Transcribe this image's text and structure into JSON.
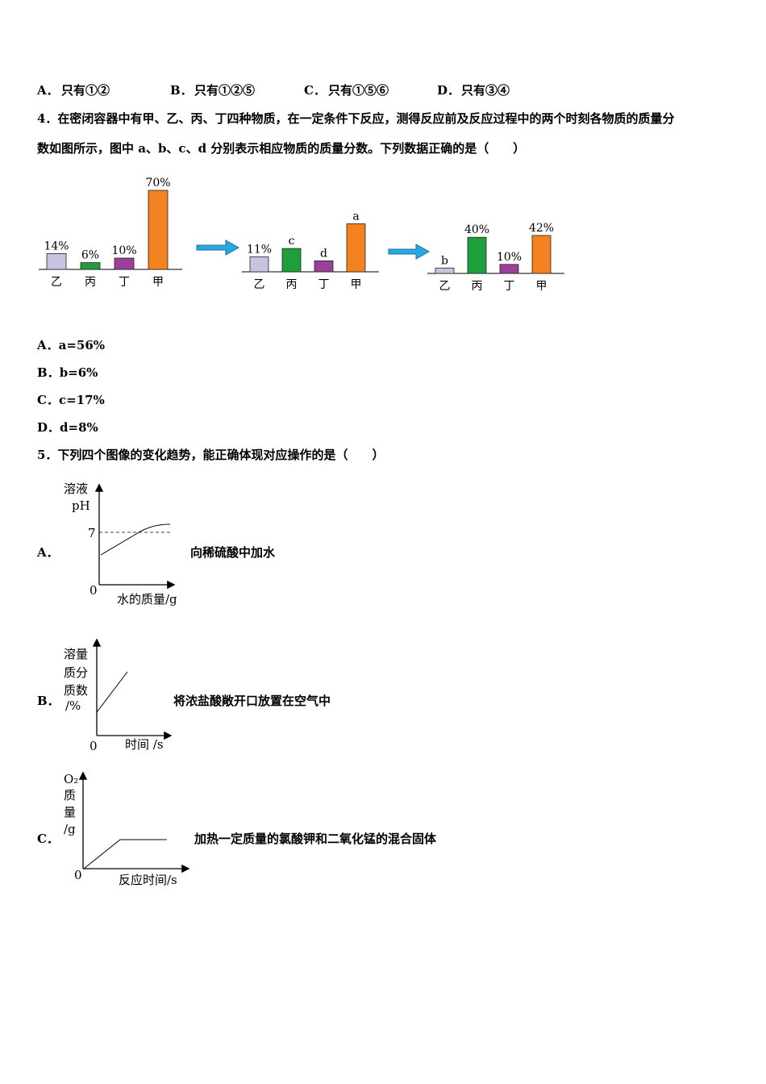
{
  "q3_options": [
    {
      "letter": "A．",
      "text": "只有①②"
    },
    {
      "letter": "B．",
      "text": "只有①②⑤"
    },
    {
      "letter": "C．",
      "text": "只有①⑤⑥"
    },
    {
      "letter": "D．",
      "text": "只有③④"
    }
  ],
  "q4": {
    "line1": "4．在密闭容器中有甲、乙、丙、丁四种物质，在一定条件下反应，测得反应前及反应过程中的两个时刻各物质的质量分",
    "line2": "数如图所示，图中 a、b、c、d 分别表示相应物质的质量分数。下列数据正确的是（　　）",
    "options": [
      {
        "letter": "A．",
        "text": "a=56%"
      },
      {
        "letter": "B．",
        "text": "b=6%"
      },
      {
        "letter": "C．",
        "text": "c=17%"
      },
      {
        "letter": "D．",
        "text": "d=8%"
      }
    ]
  },
  "chart_data": [
    {
      "type": "bar",
      "categories": [
        "乙",
        "丙",
        "丁",
        "甲"
      ],
      "values": [
        14,
        6,
        10,
        70
      ],
      "value_labels": [
        "14%",
        "6%",
        "10%",
        "70%"
      ],
      "colors": [
        "#c8c4e0",
        "#1f9e3c",
        "#9b3f9b",
        "#f58220"
      ]
    },
    {
      "type": "bar",
      "categories": [
        "乙",
        "丙",
        "丁",
        "甲"
      ],
      "values": [
        11,
        17,
        8,
        35
      ],
      "value_labels": [
        "11%",
        "c",
        "d",
        "a"
      ],
      "colors": [
        "#c8c4e0",
        "#1f9e3c",
        "#9b3f9b",
        "#f58220"
      ]
    },
    {
      "type": "bar",
      "categories": [
        "乙",
        "丙",
        "丁",
        "甲"
      ],
      "values": [
        6,
        40,
        10,
        42
      ],
      "value_labels": [
        "b",
        "40%",
        "10%",
        "42%"
      ],
      "colors": [
        "#c8c4e0",
        "#1f9e3c",
        "#9b3f9b",
        "#f58220"
      ]
    }
  ],
  "q5": {
    "stem": "5．下列四个图像的变化趋势，能正确体现对应操作的是（　　）",
    "graphs": [
      {
        "letter": "A．",
        "ylabel1": "溶液",
        "ylabel2": "pH",
        "tick": "7",
        "origin": "0",
        "xlabel": "水的质量/g",
        "desc": "向稀硫酸中加水"
      },
      {
        "letter": "B．",
        "ylabel1": "溶量",
        "ylabel2": "质分",
        "ylabel3": "质数",
        "ylabel4": "/%",
        "origin": "0",
        "xlabel": "时间 /s",
        "desc": "将浓盐酸敞开口放置在空气中"
      },
      {
        "letter": "C．",
        "ylabel1": "O₂",
        "ylabel2": "质",
        "ylabel3": "量",
        "ylabel4": "/g",
        "origin": "0",
        "xlabel": "反应时间/s",
        "desc": "加热一定质量的氯酸钾和二氧化锰的混合固体"
      }
    ]
  }
}
